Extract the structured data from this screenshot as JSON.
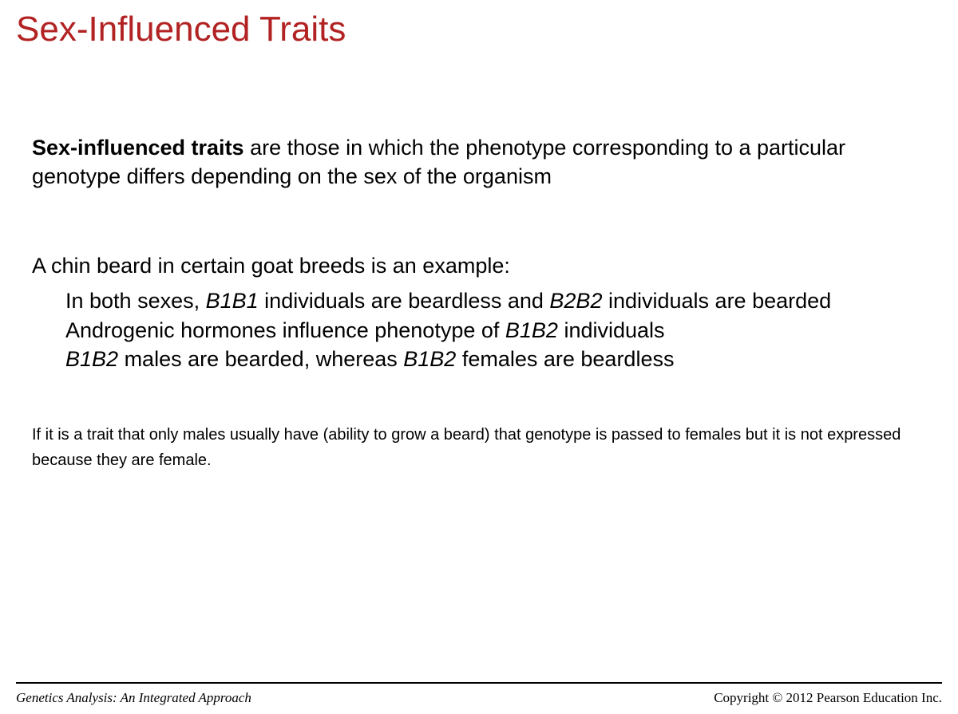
{
  "slide": {
    "title": "Sex-Influenced Traits",
    "title_color": "#b22222",
    "title_fontsize": 44,
    "background_color": "#ffffff"
  },
  "definition": {
    "bold_lead": "Sex-influenced traits",
    "rest": " are those in which the phenotype corresponding to a particular genotype differs depending on the sex of the organism",
    "fontsize": 27,
    "color": "#000000"
  },
  "example": {
    "intro": "A chin beard in certain goat breeds is an example:",
    "fontsize": 27,
    "color": "#000000",
    "lines": [
      {
        "parts": [
          {
            "text": "In both sexes, ",
            "italic": false
          },
          {
            "text": "B1B1",
            "italic": true
          },
          {
            "text": " individuals are beardless and ",
            "italic": false
          },
          {
            "text": "B2B2",
            "italic": true
          },
          {
            "text": " individuals are bearded",
            "italic": false
          }
        ]
      },
      {
        "parts": [
          {
            "text": "Androgenic hormones influence phenotype of ",
            "italic": false
          },
          {
            "text": "B1B2",
            "italic": true
          },
          {
            "text": " individuals",
            "italic": false
          }
        ]
      },
      {
        "parts": [
          {
            "text": "B1B2",
            "italic": true
          },
          {
            "text": " males are bearded, whereas ",
            "italic": false
          },
          {
            "text": "B1B2",
            "italic": true
          },
          {
            "text": " females are beardless",
            "italic": false
          }
        ]
      }
    ]
  },
  "note": {
    "text": "If it is a trait that only males usually have (ability to grow a beard) that genotype is passed to females but it is not expressed because they are female.",
    "fontsize": 20,
    "font_family": "Comic Sans MS",
    "color": "#000000"
  },
  "footer": {
    "left": "Genetics Analysis: An Integrated Approach",
    "right": "Copyright © 2012 Pearson Education Inc.",
    "line_color": "#000000",
    "fontsize": 17
  }
}
